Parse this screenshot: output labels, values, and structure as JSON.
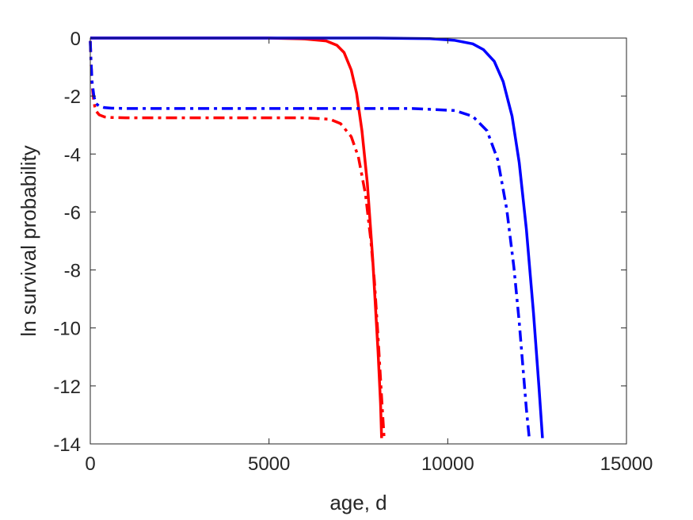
{
  "chart_data": {
    "type": "line",
    "xlabel": "age, d",
    "ylabel": "ln survival probability",
    "xlim": [
      0,
      15000
    ],
    "ylim": [
      -14,
      0
    ],
    "xticks": [
      0,
      5000,
      10000,
      15000
    ],
    "yticks": [
      0,
      -2,
      -4,
      -6,
      -8,
      -10,
      -12,
      -14
    ],
    "xtick_labels": [
      "0",
      "5000",
      "10000",
      "15000"
    ],
    "ytick_labels": [
      "0",
      "-2",
      "-4",
      "-6",
      "-8",
      "-10",
      "-12",
      "-14"
    ],
    "grid": false,
    "legend": "none",
    "series": [
      {
        "color": "#ff0000",
        "style": "solid",
        "x": [
          0,
          5000,
          6000,
          6600,
          6900,
          7100,
          7300,
          7450,
          7600,
          7750,
          7900,
          8050,
          8120,
          8150
        ],
        "y": [
          0,
          0,
          -0.03,
          -0.1,
          -0.25,
          -0.5,
          -1.1,
          -1.9,
          -3.2,
          -5.0,
          -7.6,
          -10.8,
          -12.6,
          -13.8
        ]
      },
      {
        "color": "#ff0000",
        "style": "dashdot",
        "x": [
          0,
          20,
          50,
          100,
          150,
          250,
          400,
          600,
          1000,
          3000,
          6000,
          6700,
          7000,
          7300,
          7500,
          7700,
          7850,
          7950,
          8050,
          8150,
          8220
        ],
        "y": [
          -0.1,
          -0.8,
          -1.6,
          -2.2,
          -2.5,
          -2.65,
          -2.72,
          -2.74,
          -2.75,
          -2.75,
          -2.75,
          -2.8,
          -2.95,
          -3.4,
          -4.1,
          -5.4,
          -7.0,
          -8.4,
          -10.3,
          -12.4,
          -13.8
        ]
      },
      {
        "color": "#0000ff",
        "style": "solid",
        "x": [
          0,
          8000,
          9500,
          10200,
          10700,
          11000,
          11300,
          11550,
          11800,
          12000,
          12200,
          12400,
          12550,
          12650
        ],
        "y": [
          0,
          0,
          -0.02,
          -0.08,
          -0.2,
          -0.4,
          -0.8,
          -1.5,
          -2.7,
          -4.3,
          -6.6,
          -9.5,
          -12.0,
          -13.8
        ]
      },
      {
        "color": "#0000ff",
        "style": "dashdot",
        "x": [
          0,
          20,
          50,
          100,
          150,
          250,
          400,
          600,
          1000,
          5000,
          9000,
          10200,
          10700,
          11100,
          11400,
          11650,
          11850,
          12000,
          12100,
          12200,
          12280
        ],
        "y": [
          -0.1,
          -0.8,
          -1.5,
          -2.0,
          -2.25,
          -2.35,
          -2.4,
          -2.42,
          -2.43,
          -2.43,
          -2.43,
          -2.5,
          -2.7,
          -3.2,
          -4.2,
          -5.9,
          -7.9,
          -9.8,
          -11.3,
          -12.8,
          -13.8
        ]
      }
    ]
  }
}
